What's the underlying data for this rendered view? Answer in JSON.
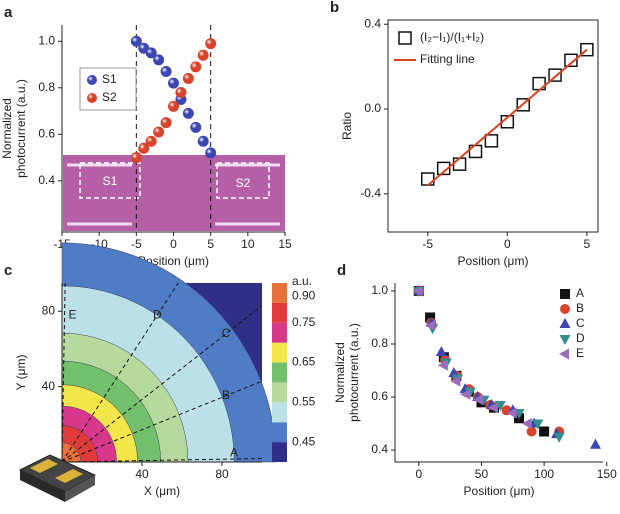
{
  "chart_data": [
    {
      "type": "scatter",
      "panel_label": "a",
      "x_label": "Position (μm)",
      "y_label": [
        "Normalized",
        "photocurrent (a.u.)"
      ],
      "xlim": [
        -15,
        15
      ],
      "ylim": [
        0.18,
        1.07
      ],
      "xticks": [
        -15,
        -10,
        -5,
        0,
        5,
        10,
        15
      ],
      "yticks": [
        0.4,
        0.6,
        0.8,
        {
          "value": 1,
          "label": "1.0"
        }
      ],
      "vlines": [
        -5,
        5
      ],
      "annotations": [
        "S1",
        "S2"
      ],
      "series": [
        {
          "name": "S1",
          "color": "#3b46b3",
          "x": [
            -5,
            -4,
            -3,
            -2,
            -1,
            0,
            1,
            2,
            3,
            4,
            5
          ],
          "values": [
            1.0,
            0.97,
            0.95,
            0.92,
            0.87,
            0.82,
            0.75,
            0.69,
            0.63,
            0.57,
            0.52
          ]
        },
        {
          "name": "S2",
          "color": "#d8432c",
          "x": [
            -5,
            -4,
            -3,
            -2,
            -1,
            0,
            1,
            2,
            3,
            4,
            5
          ],
          "values": [
            0.5,
            0.54,
            0.57,
            0.61,
            0.65,
            0.72,
            0.78,
            0.84,
            0.89,
            0.94,
            0.99
          ]
        }
      ]
    },
    {
      "type": "scatter",
      "panel_label": "b",
      "x_label": "Position (μm)",
      "y_label": [
        "Ratio"
      ],
      "xlim": [
        -7.5,
        5.7
      ],
      "ylim": [
        -0.58,
        0.42
      ],
      "xticks": [
        -5,
        0,
        5
      ],
      "yticks": [
        -0.4,
        {
          "value": 0,
          "label": "0.0"
        },
        0.4
      ],
      "legend": "upper left",
      "series": [
        {
          "name": "(I₂−I₁)/(I₁+I₂)",
          "color": "#111111",
          "marker": "square",
          "x": [
            -5,
            -4,
            -3,
            -2,
            -1,
            0,
            1,
            2,
            3,
            4,
            5
          ],
          "values": [
            -0.33,
            -0.28,
            -0.26,
            -0.2,
            -0.15,
            -0.06,
            0.02,
            0.12,
            0.16,
            0.23,
            0.28
          ]
        }
      ],
      "fit": {
        "name": "Fitting line",
        "color": "#d9431e",
        "x": [
          -5,
          5
        ],
        "values": [
          -0.36,
          0.28
        ]
      }
    },
    {
      "type": "contour",
      "panel_label": "c",
      "x_label": "X (μm)",
      "y_label": [
        "Y (μm)"
      ],
      "xlim": [
        0,
        100
      ],
      "ylim": [
        0,
        95
      ],
      "xticks": [
        0,
        40,
        80
      ],
      "yticks": [
        0,
        40,
        80
      ],
      "lines": [
        "A",
        "B",
        "C",
        "D",
        "E"
      ],
      "colorbar": {
        "title": "a.u.",
        "levels": [
          0.4,
          0.45,
          0.5,
          0.55,
          0.6,
          0.65,
          0.7,
          0.75,
          0.85,
          1.0
        ],
        "colors": [
          "#2f2f87",
          "#4f7cc4",
          "#bce0e8",
          "#b6da9e",
          "#72c06c",
          "#f2e64a",
          "#d8388c",
          "#e03a3a",
          "#e8703a"
        ],
        "ticks": [
          0.45,
          0.55,
          0.65,
          0.75,
          {
            "value": 0.9,
            "label": "0.90"
          }
        ]
      }
    },
    {
      "type": "scatter",
      "panel_label": "d",
      "x_label": "Position (μm)",
      "y_label": [
        "Normalized",
        "photocurrent (a.u.)"
      ],
      "xlim": [
        -19,
        147
      ],
      "ylim": [
        0.355,
        1.03
      ],
      "xticks": [
        0,
        50,
        100,
        150
      ],
      "yticks": [
        0.4,
        0.6,
        0.8,
        {
          "value": 1,
          "label": "1.0"
        }
      ],
      "legend": "upper right",
      "series": [
        {
          "name": "A",
          "color": "#111111",
          "marker": "square",
          "x": [
            0,
            9,
            20,
            30,
            40,
            50,
            60,
            80,
            100
          ],
          "values": [
            1.0,
            0.9,
            0.75,
            0.68,
            0.62,
            0.58,
            0.56,
            0.52,
            0.47
          ]
        },
        {
          "name": "B",
          "color": "#d8432c",
          "marker": "circle",
          "x": [
            0,
            10,
            21,
            30,
            40,
            47,
            57,
            70,
            90,
            112
          ],
          "values": [
            1.0,
            0.88,
            0.74,
            0.68,
            0.63,
            0.6,
            0.57,
            0.55,
            0.47,
            0.47
          ]
        },
        {
          "name": "C",
          "color": "#3b46b3",
          "marker": "triangle-up",
          "x": [
            0,
            10,
            18,
            28,
            37,
            47,
            58,
            75,
            92,
            110,
            141
          ],
          "values": [
            1.0,
            0.88,
            0.77,
            0.69,
            0.63,
            0.6,
            0.57,
            0.55,
            0.5,
            0.46,
            0.42
          ]
        },
        {
          "name": "D",
          "color": "#2f8f8a",
          "marker": "triangle-down",
          "x": [
            0,
            11,
            22,
            31,
            41,
            52,
            65,
            80,
            95,
            112
          ],
          "values": [
            1.0,
            0.86,
            0.73,
            0.67,
            0.62,
            0.59,
            0.57,
            0.54,
            0.5,
            0.45
          ]
        },
        {
          "name": "E",
          "color": "#9a6bbf",
          "marker": "triangle-left",
          "x": [
            0,
            10,
            20,
            30,
            38,
            48,
            60,
            75,
            87
          ],
          "values": [
            1.0,
            0.87,
            0.72,
            0.66,
            0.61,
            0.59,
            0.56,
            0.54,
            0.5
          ]
        }
      ]
    }
  ]
}
